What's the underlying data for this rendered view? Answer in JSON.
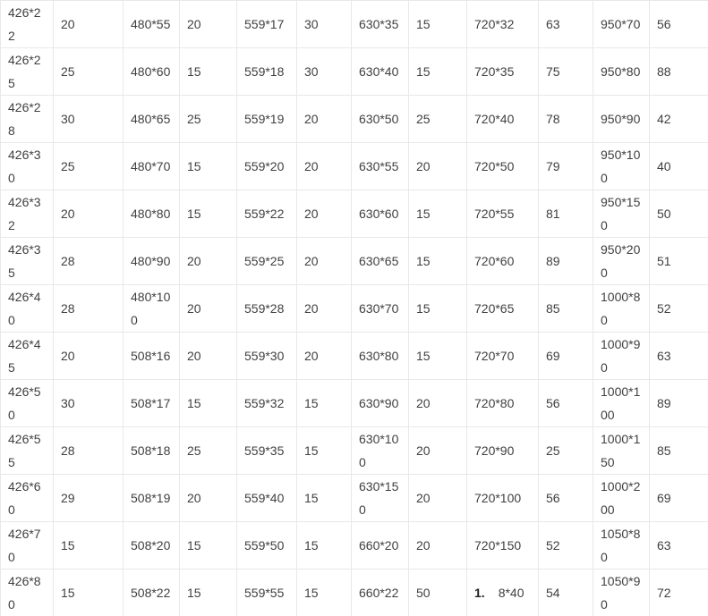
{
  "colors": {
    "text": "#404040",
    "border": "#e8e8e8",
    "background": "#ffffff",
    "bold_text": "#222222"
  },
  "table": {
    "rows": [
      [
        "426*22",
        "20",
        "480*55",
        "20",
        "559*17",
        "30",
        "630*35",
        "15",
        "720*32",
        "63",
        "950*70",
        "56"
      ],
      [
        "426*25",
        "25",
        "480*60",
        "15",
        "559*18",
        "30",
        "630*40",
        "15",
        "720*35",
        "75",
        "950*80",
        "88"
      ],
      [
        "426*28",
        "30",
        "480*65",
        "25",
        "559*19",
        "20",
        "630*50",
        "25",
        "720*40",
        "78",
        "950*90",
        "42"
      ],
      [
        "426*30",
        "25",
        "480*70",
        "15",
        "559*20",
        "20",
        "630*55",
        "20",
        "720*50",
        "79",
        "950*100",
        "40"
      ],
      [
        "426*32",
        "20",
        "480*80",
        "15",
        "559*22",
        "20",
        "630*60",
        "15",
        "720*55",
        "81",
        "950*150",
        "50"
      ],
      [
        "426*35",
        "28",
        "480*90",
        "20",
        "559*25",
        "20",
        "630*65",
        "15",
        "720*60",
        "89",
        "950*200",
        "51"
      ],
      [
        "426*40",
        "28",
        "480*100",
        "20",
        "559*28",
        "20",
        "630*70",
        "15",
        "720*65",
        "85",
        "1000*80",
        "52"
      ],
      [
        "426*45",
        "20",
        "508*16",
        "20",
        "559*30",
        "20",
        "630*80",
        "15",
        "720*70",
        "69",
        "1000*90",
        "63"
      ],
      [
        "426*50",
        "30",
        "508*17",
        "15",
        "559*32",
        "15",
        "630*90",
        "20",
        "720*80",
        "56",
        "1000*100",
        "89"
      ],
      [
        "426*55",
        "28",
        "508*18",
        "25",
        "559*35",
        "15",
        "630*100",
        "20",
        "720*90",
        "25",
        "1000*150",
        "85"
      ],
      [
        "426*60",
        "29",
        "508*19",
        "20",
        "559*40",
        "15",
        "630*150",
        "20",
        "720*100",
        "56",
        "1000*200",
        "69"
      ],
      [
        "426*70",
        "15",
        "508*20",
        "15",
        "559*50",
        "15",
        "660*20",
        "20",
        "720*150",
        "52",
        "1050*80",
        "63"
      ],
      [
        "426*80",
        "15",
        "508*22",
        "15",
        "559*55",
        "15",
        "660*22",
        "50",
        {
          "bold_prefix": "1.",
          "text": "8*40"
        },
        "54",
        "1050*90",
        "72"
      ]
    ]
  }
}
